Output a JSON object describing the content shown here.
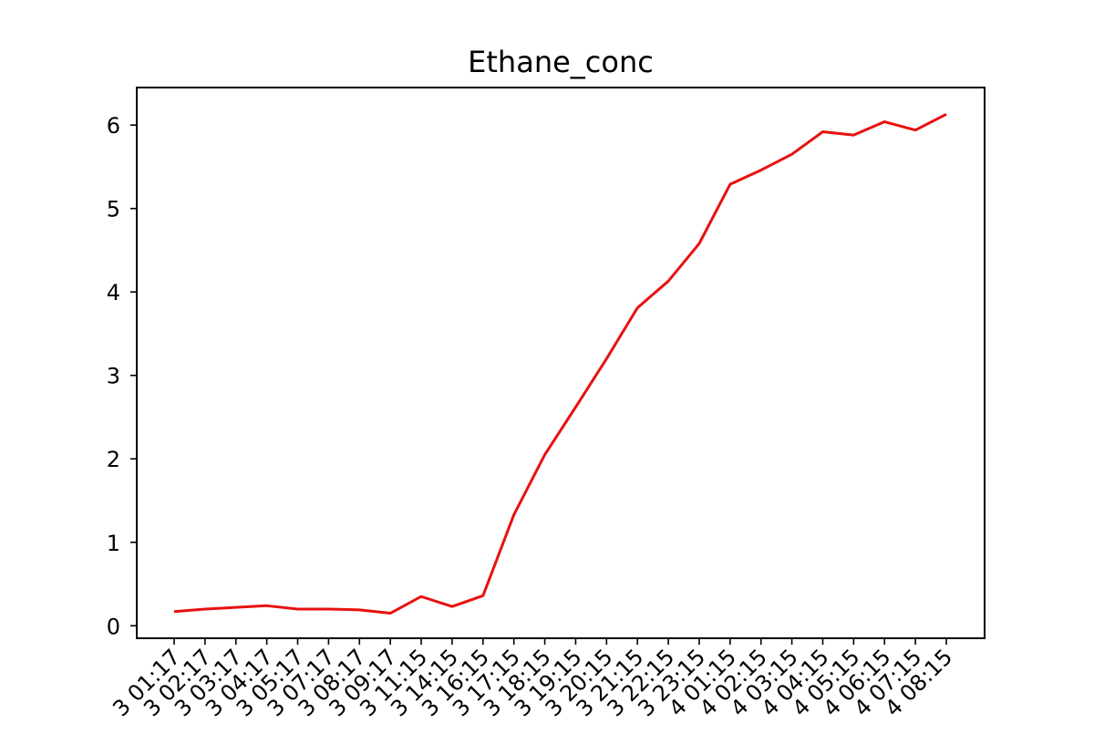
{
  "chart_data": {
    "type": "line",
    "title": "Ethane_conc",
    "xlabel": "",
    "ylabel": "",
    "x_tick_labels": [
      "3 01:17",
      "3 02:17",
      "3 03:17",
      "3 04:17",
      "3 05:17",
      "3 07:17",
      "3 08:17",
      "3 09:17",
      "3 11:15",
      "3 14:15",
      "3 16:15",
      "3 17:15",
      "3 18:15",
      "3 19:15",
      "3 20:15",
      "3 21:15",
      "3 22:15",
      "3 23:15",
      "4 01:15",
      "4 02:15",
      "4 03:15",
      "4 04:15",
      "4 05:15",
      "4 06:15",
      "4 07:15",
      "4 08:15"
    ],
    "y_ticks": [
      0,
      1,
      2,
      3,
      4,
      5,
      6
    ],
    "ylim": [
      -0.15,
      6.45
    ],
    "grid": false,
    "series": [
      {
        "color": "#e8110f",
        "values": [
          0.17,
          0.2,
          0.22,
          0.24,
          0.2,
          0.2,
          0.19,
          0.15,
          0.35,
          0.23,
          0.36,
          1.33,
          2.05,
          2.62,
          3.2,
          3.81,
          4.13,
          4.58,
          5.29,
          5.46,
          5.65,
          5.92,
          5.88,
          6.04,
          5.94,
          6.13
        ]
      }
    ]
  }
}
